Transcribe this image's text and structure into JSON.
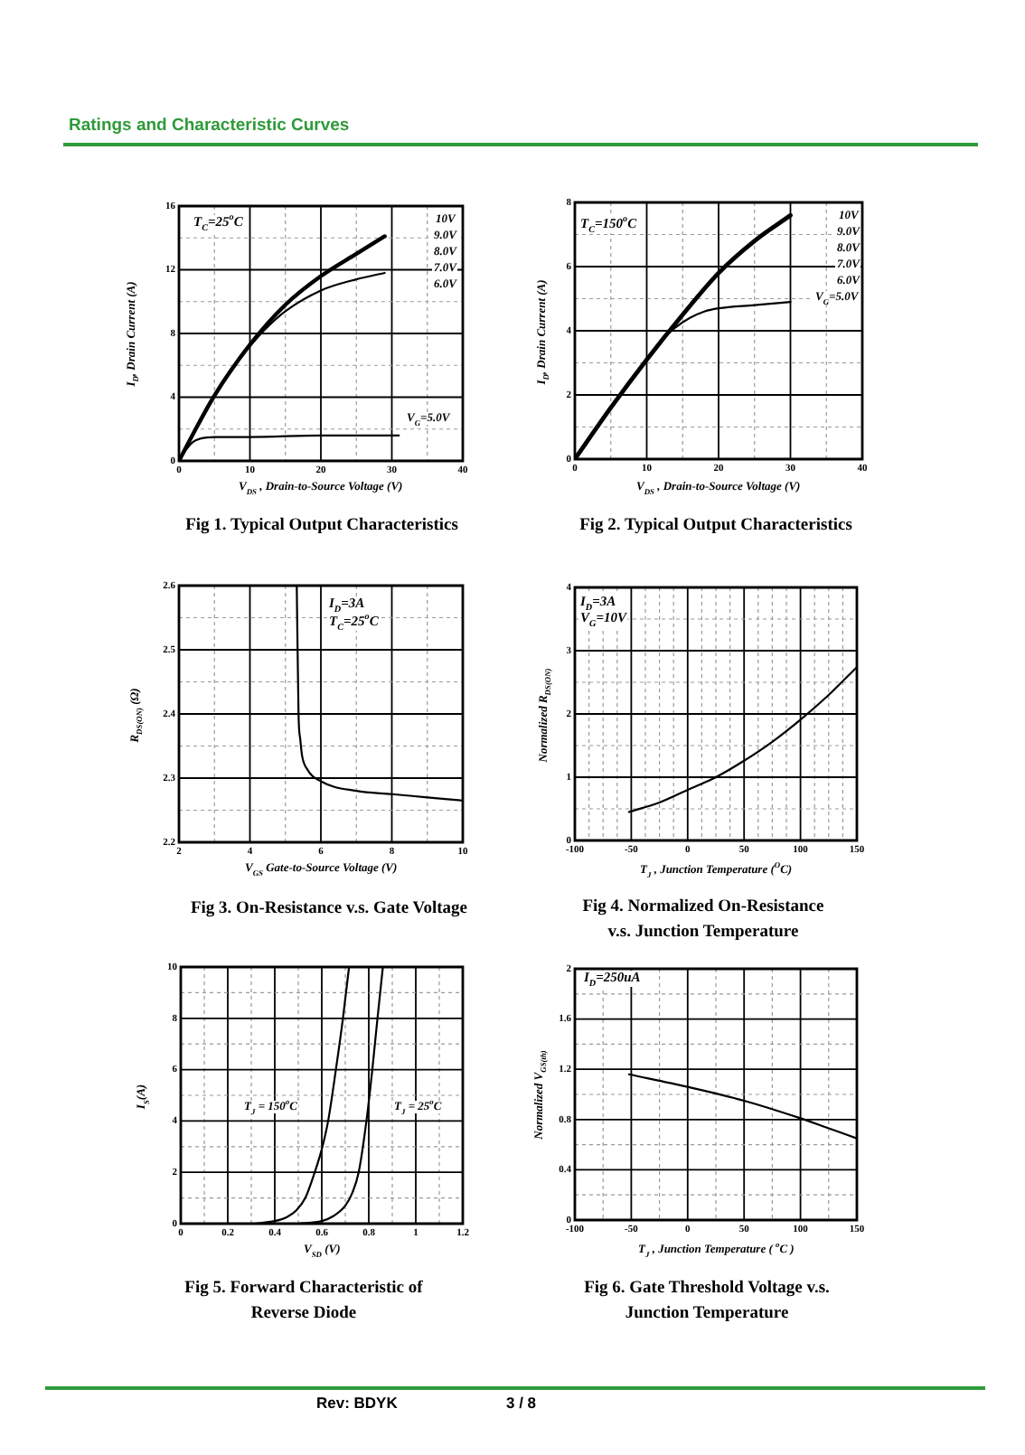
{
  "chart_data": [
    {
      "type": "line",
      "title": "Fig 1. Typical Output Characteristics",
      "xlabel": "V$_{DS}$ , Drain-to-Source Voltage (V)",
      "ylabel": "I$_{D}$, Drain Current (A)",
      "annotations": [
        "Ratings and Characteristic Curves",
        "T$_{C}$=25$^{o}$C",
        "10V",
        "9.0V",
        "8.0V",
        "7.0V",
        "6.0V"
      ],
      "series": [
        {
          "color": "#000000",
          "x": [
            0,
            2,
            5,
            10,
            15,
            20,
            25,
            29
          ],
          "values": [
            0,
            1.7,
            4.1,
            7.3,
            9.8,
            11.6,
            13.0,
            14.1
          ]
        },
        {
          "color": "#000000",
          "x": [
            10,
            12,
            15,
            20,
            25,
            29
          ],
          "values": [
            7.2,
            8.2,
            9.4,
            10.7,
            11.4,
            11.8
          ]
        },
        {
          "name": "V$_{G}$=5.0V",
          "color": "#000000",
          "x": [
            0,
            1,
            2,
            3,
            5,
            10,
            20,
            31
          ],
          "values": [
            0,
            0.7,
            1.2,
            1.4,
            1.5,
            1.5,
            1.6,
            1.6
          ]
        }
      ],
      "xlim": [
        0,
        40
      ],
      "ylim": [
        0,
        16
      ],
      "xticks": [
        0,
        {
          "value": 5,
          "label": null
        },
        10,
        {
          "value": 15,
          "label": null
        },
        20,
        {
          "value": 25,
          "label": null
        },
        30,
        {
          "value": 35,
          "label": null
        },
        40
      ],
      "yticks": [
        0,
        {
          "value": 2,
          "label": null
        },
        4,
        {
          "value": 6,
          "label": null
        },
        8,
        {
          "value": 10,
          "label": null
        },
        12,
        {
          "value": 14,
          "label": null
        },
        16
      ],
      "grid": true
    },
    {
      "type": "line",
      "title": "Fig 2. Typical Output Characteristics",
      "xlabel": "V$_{DS}$ , Drain-to-Source Voltage (V)",
      "ylabel": "I$_{D}$, Drain Current (A)",
      "annotations": [
        "T$_{C}$=150$^{o}$C",
        "10V",
        "9.0V",
        "8.0V",
        "7.0V",
        "6.0V"
      ],
      "series": [
        {
          "color": "#000000",
          "x": [
            0,
            5,
            10,
            15,
            20,
            25,
            30
          ],
          "values": [
            0,
            1.6,
            3.1,
            4.5,
            5.8,
            6.8,
            7.6
          ]
        },
        {
          "name": "V$_{G}$=5.0V",
          "color": "#000000",
          "x": [
            12,
            14,
            16,
            18,
            20,
            25,
            30
          ],
          "values": [
            3.7,
            4.1,
            4.4,
            4.6,
            4.7,
            4.8,
            4.9
          ]
        }
      ],
      "xlim": [
        0,
        40
      ],
      "ylim": [
        0,
        8
      ],
      "xticks": [
        0,
        {
          "value": 5,
          "label": null
        },
        10,
        {
          "value": 15,
          "label": null
        },
        20,
        {
          "value": 25,
          "label": null
        },
        30,
        {
          "value": 35,
          "label": null
        },
        40
      ],
      "yticks": [
        0,
        {
          "value": 1,
          "label": null
        },
        2,
        {
          "value": 3,
          "label": null
        },
        4,
        {
          "value": 5,
          "label": null
        },
        6,
        {
          "value": 7,
          "label": null
        },
        8
      ],
      "grid": true
    },
    {
      "type": "line",
      "title": "Fig 3. On-Resistance  v.s. Gate Voltage",
      "xlabel": "V$_{GS}$ Gate-to-Source Voltage (V)",
      "ylabel": "R$_{DS(ON)}$ (Ω)",
      "annotations": [
        "I$_{D}$=3A",
        "T$_{C}$=25$^{o}$C"
      ],
      "series": [
        {
          "color": "#000000",
          "x": [
            5.32,
            5.37,
            5.42,
            5.47,
            5.6,
            6,
            7,
            8,
            9,
            10
          ],
          "values": [
            2.6,
            2.4,
            2.36,
            2.335,
            2.315,
            2.295,
            2.28,
            2.275,
            2.27,
            2.265
          ]
        }
      ],
      "xlim": [
        2,
        10
      ],
      "ylim": [
        2.2,
        2.6
      ],
      "xticks": [
        2,
        {
          "value": 3,
          "label": null
        },
        4,
        {
          "value": 5,
          "label": null
        },
        6,
        {
          "value": 7,
          "label": null
        },
        8,
        {
          "value": 9,
          "label": null
        },
        10
      ],
      "yticks": [
        2.2,
        {
          "value": 2.25,
          "label": null
        },
        2.3,
        {
          "value": 2.35,
          "label": null
        },
        2.4,
        {
          "value": 2.45,
          "label": null
        },
        2.5,
        {
          "value": 2.55,
          "label": null
        },
        2.6
      ],
      "grid": true
    },
    {
      "type": "line",
      "title": "Fig 4. Normalized On-Resistance v.s. Junction Temperature",
      "xlabel": "T$_{J}$ , Junction Temperature ($^{O}$C)",
      "ylabel": "Normalized R$_{DS(ON)}$",
      "annotations": [
        "I$_{D}$=3A",
        "V$_{G}$=10V"
      ],
      "series": [
        {
          "color": "#000000",
          "x": [
            -52,
            -25,
            0,
            25,
            50,
            75,
            100,
            125,
            150
          ],
          "values": [
            0.45,
            0.6,
            0.8,
            1.0,
            1.26,
            1.56,
            1.91,
            2.3,
            2.74
          ]
        }
      ],
      "xlim": [
        -100,
        150
      ],
      "ylim": [
        0,
        4
      ],
      "xticks": [
        -100,
        {
          "value": -87.5,
          "label": null
        },
        {
          "value": -75,
          "label": null
        },
        {
          "value": -62.5,
          "label": null
        },
        -50,
        {
          "value": -37.5,
          "label": null
        },
        {
          "value": -25,
          "label": null
        },
        {
          "value": -12.5,
          "label": null
        },
        0,
        {
          "value": 12.5,
          "label": null
        },
        {
          "value": 25,
          "label": null
        },
        {
          "value": 37.5,
          "label": null
        },
        50,
        {
          "value": 62.5,
          "label": null
        },
        {
          "value": 75,
          "label": null
        },
        {
          "value": 87.5,
          "label": null
        },
        100,
        {
          "value": 112.5,
          "label": null
        },
        {
          "value": 125,
          "label": null
        },
        {
          "value": 137.5,
          "label": null
        },
        150
      ],
      "yticks": [
        0,
        {
          "value": 0.5,
          "label": null
        },
        1,
        {
          "value": 1.5,
          "label": null
        },
        2,
        {
          "value": 2.5,
          "label": null
        },
        3,
        {
          "value": 3.5,
          "label": null
        },
        4
      ],
      "grid": true
    },
    {
      "type": "line",
      "title": "Fig 5. Forward Characteristic of Reverse Diode",
      "xlabel": "V$_{SD}$ (V)",
      "ylabel": "I$_{S}$(A)",
      "series": [
        {
          "name": "T$_{J}$ = 150$^{o}$C",
          "color": "#000000",
          "x": [
            0.31,
            0.4,
            0.45,
            0.49,
            0.53,
            0.57,
            0.6,
            0.627,
            0.66,
            0.69,
            0.716
          ],
          "values": [
            0,
            0.1,
            0.25,
            0.5,
            1.0,
            2.0,
            2.9,
            4.0,
            6.0,
            8.0,
            10
          ]
        },
        {
          "name": "T$_{J}$ = 25$^{o}$C",
          "color": "#000000",
          "x": [
            0.5,
            0.6,
            0.65,
            0.7,
            0.73,
            0.757,
            0.79,
            0.815,
            0.837,
            0.86
          ],
          "values": [
            0,
            0.1,
            0.3,
            0.7,
            1.2,
            2.0,
            4.0,
            6.0,
            8.0,
            10
          ]
        }
      ],
      "xlim": [
        0,
        1.2
      ],
      "ylim": [
        0,
        10
      ],
      "xticks": [
        0,
        {
          "value": 0.1,
          "label": null
        },
        0.2,
        {
          "value": 0.3,
          "label": null
        },
        0.4,
        {
          "value": 0.5,
          "label": null
        },
        0.6,
        {
          "value": 0.7,
          "label": null
        },
        0.8,
        {
          "value": 0.9,
          "label": null
        },
        1,
        {
          "value": 1.1,
          "label": null
        },
        1.2
      ],
      "yticks": [
        0,
        {
          "value": 1,
          "label": null
        },
        2,
        {
          "value": 3,
          "label": null
        },
        4,
        {
          "value": 5,
          "label": null
        },
        6,
        {
          "value": 7,
          "label": null
        },
        8,
        {
          "value": 9,
          "label": null
        },
        10
      ],
      "grid": true
    },
    {
      "type": "line",
      "title": "Fig 6. Gate Threshold Voltage v.s. Junction Temperature",
      "xlabel": "T$_{J}$ , Junction Temperature ( $^{o}$C )",
      "ylabel": "Normalized V$_{GS(th)}$",
      "annotations": [
        "I$_{D}$=250uA",
        "Rev: BDYK",
        "3 / 8"
      ],
      "series": [
        {
          "color": "#000000",
          "x": [
            -52,
            0,
            50,
            100,
            125,
            150
          ],
          "values": [
            1.16,
            1.06,
            0.95,
            0.81,
            0.73,
            0.65
          ]
        }
      ],
      "xlim": [
        -100,
        150
      ],
      "ylim": [
        0,
        2
      ],
      "xticks": [
        -100,
        {
          "value": -75,
          "label": null
        },
        -50,
        {
          "value": -25,
          "label": null
        },
        0,
        {
          "value": 25,
          "label": null
        },
        50,
        {
          "value": 75,
          "label": null
        },
        100,
        {
          "value": 125,
          "label": null
        },
        150
      ],
      "yticks": [
        0,
        {
          "value": 0.2,
          "label": null
        },
        0.4,
        {
          "value": 0.6,
          "label": null
        },
        0.8,
        {
          "value": 1,
          "label": null
        },
        1.2,
        {
          "value": 1.4,
          "label": null
        },
        1.6,
        {
          "value": 1.8,
          "label": null
        },
        2
      ],
      "grid": true
    }
  ]
}
